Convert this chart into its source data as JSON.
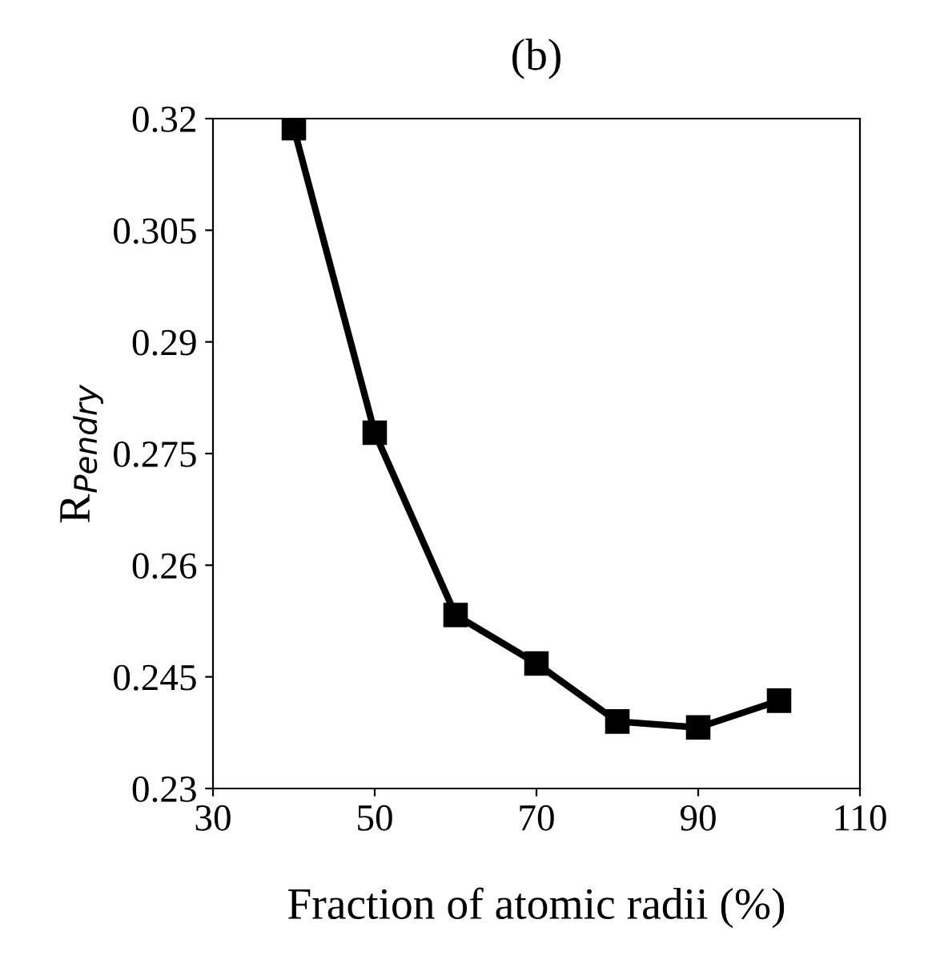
{
  "chart_data": {
    "type": "line",
    "title": "(b)",
    "xlabel": "Fraction of atomic radii (%)",
    "ylabel": "R$_{Pendry}$",
    "x": [
      40,
      50,
      60,
      70,
      80,
      90,
      100
    ],
    "series": [
      {
        "color": "#000000",
        "values": [
          0.3187,
          0.2778,
          0.2533,
          0.2468,
          0.239,
          0.2382,
          0.2418
        ]
      }
    ],
    "xlim": [
      30,
      110
    ],
    "xticks": [
      30,
      50,
      70,
      90,
      110
    ],
    "ylim": [
      0.23,
      0.32
    ],
    "yticks": [
      0.23,
      0.245,
      0.26,
      0.275,
      0.29,
      0.305,
      0.32
    ],
    "marker": "square",
    "line_style": "solid",
    "grid": false,
    "legend": false
  }
}
